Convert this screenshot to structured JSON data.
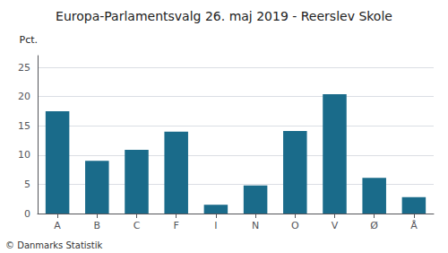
{
  "chart_data": {
    "type": "bar",
    "title": "Europa-Parlamentsvalg 26. maj 2019 - Reerslev Skole",
    "ylabel": "Pct.",
    "annotations": [
      "© Danmarks Statistik"
    ],
    "categories": [
      "A",
      "B",
      "C",
      "F",
      "I",
      "N",
      "O",
      "V",
      "Ø",
      "Å"
    ],
    "values": [
      17.5,
      9.0,
      10.9,
      14.0,
      1.5,
      4.8,
      14.1,
      20.4,
      6.1,
      2.8
    ],
    "color": "#1a6b8a",
    "ylim": [
      0,
      27
    ],
    "yticks": [
      0,
      5,
      10,
      15,
      20,
      25
    ],
    "grid": true
  }
}
